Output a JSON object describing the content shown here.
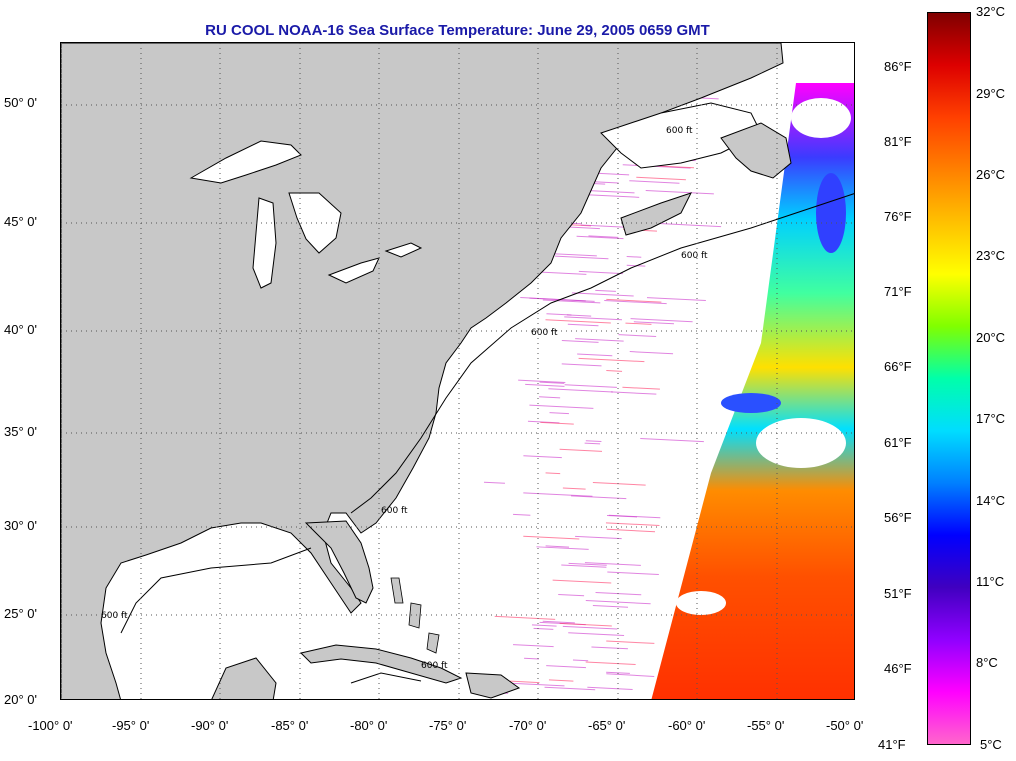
{
  "title": "RU COOL  NOAA-16  Sea Surface Temperature:  June 29, 2005 0659 GMT",
  "map": {
    "lat_labels": [
      "50° 0'",
      "45° 0'",
      "40° 0'",
      "35° 0'",
      "30° 0'",
      "25° 0'",
      "20° 0'"
    ],
    "lon_labels": [
      "-100° 0'",
      "-95° 0'",
      "-90° 0'",
      "-85° 0'",
      "-80° 0'",
      "-75° 0'",
      "-70° 0'",
      "-65° 0'",
      "-60° 0'",
      "-55° 0'",
      "-50° 0'"
    ],
    "lat_range": [
      20,
      52.5
    ],
    "lon_range": [
      -100,
      -50
    ],
    "contour_label": "600 ft",
    "land_color": "#c8c8c8",
    "ocean_color": "#ffffff",
    "grid": true,
    "grid_style": "dotted"
  },
  "colorbar": {
    "fahrenheit_labels": [
      "86°F",
      "81°F",
      "76°F",
      "71°F",
      "66°F",
      "61°F",
      "56°F",
      "51°F",
      "46°F",
      "41°F"
    ],
    "celsius_labels": [
      "32°C",
      "29°C",
      "26°C",
      "23°C",
      "20°C",
      "17°C",
      "14°C",
      "11°C",
      "8°C",
      "5°C"
    ],
    "range_celsius": [
      5,
      32
    ],
    "colors": [
      "#800000",
      "#dd0000",
      "#ff4000",
      "#ff8000",
      "#ffc000",
      "#ffff00",
      "#80ff00",
      "#00ffaa",
      "#00ddff",
      "#0080ff",
      "#0000ff",
      "#4000c0",
      "#9000ff",
      "#ff00ff",
      "#ff66cc"
    ]
  }
}
